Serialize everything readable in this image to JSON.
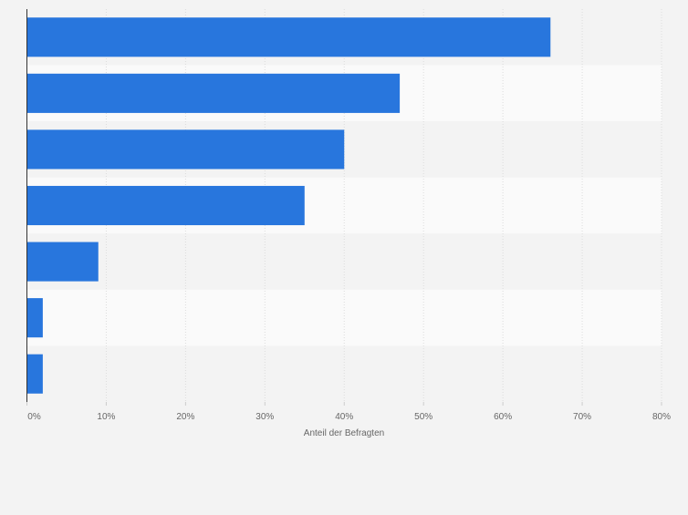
{
  "chart_data": {
    "type": "bar",
    "orientation": "horizontal",
    "categories": [
      "",
      "",
      "",
      "",
      "",
      "",
      ""
    ],
    "values": [
      66,
      47,
      40,
      35,
      9,
      2,
      2
    ],
    "xlabel": "Anteil der Befragten",
    "ylabel": "",
    "xlim": [
      0,
      80
    ],
    "x_ticks": [
      0,
      10,
      20,
      30,
      40,
      50,
      60,
      70,
      80
    ],
    "x_tick_labels": [
      "0%",
      "10%",
      "20%",
      "30%",
      "40%",
      "50%",
      "60%",
      "70%",
      "80%"
    ],
    "grid": true,
    "bar_color": "#2876dd",
    "row_band_colors": [
      "#f3f3f3",
      "#fafafa"
    ]
  }
}
